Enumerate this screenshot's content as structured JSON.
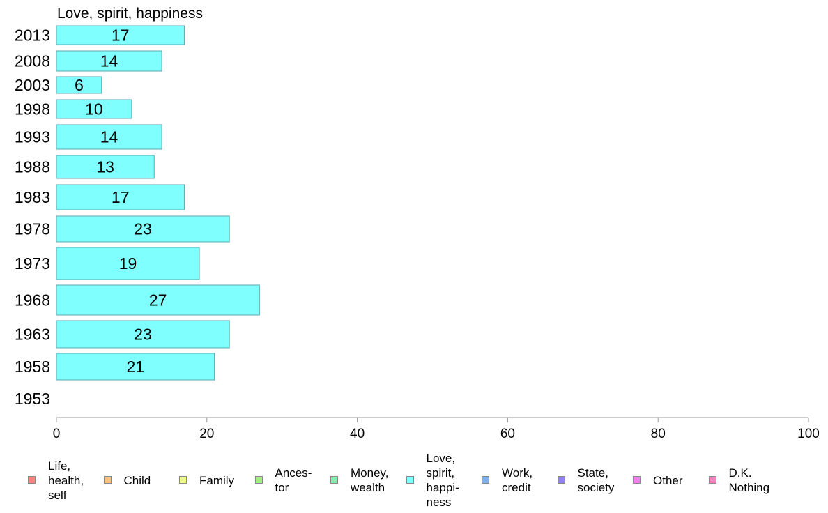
{
  "chart_data": {
    "type": "bar",
    "orientation": "horizontal",
    "title": "Love, spirit, happiness",
    "categories": [
      "2013",
      "2008",
      "2003",
      "1998",
      "1993",
      "1988",
      "1983",
      "1978",
      "1973",
      "1968",
      "1963",
      "1958",
      "1953"
    ],
    "series": [
      {
        "name": "Love, spirit, happiness",
        "color": "#80ffff",
        "values": [
          17,
          14,
          6,
          10,
          14,
          13,
          17,
          23,
          19,
          27,
          23,
          21,
          null
        ]
      }
    ],
    "xlim": [
      0,
      100
    ],
    "xticks": [
      0,
      20,
      40,
      60,
      80,
      100
    ],
    "grid": false,
    "legend_position": "bottom",
    "legend": [
      {
        "label": "Life,\nhealth,\nself",
        "color": "#ff8080"
      },
      {
        "label": "Child",
        "color": "#ffc080"
      },
      {
        "label": "Family",
        "color": "#eeff80"
      },
      {
        "label": "Ances-\ntor",
        "color": "#a0f080"
      },
      {
        "label": "Money,\nwealth",
        "color": "#80f0b0"
      },
      {
        "label": "Love,\nspirit,\nhappi-\nness",
        "color": "#80ffff"
      },
      {
        "label": "Work,\ncredit",
        "color": "#80b0f0"
      },
      {
        "label": "State,\nsociety",
        "color": "#9080f0"
      },
      {
        "label": "Other",
        "color": "#f080f0"
      },
      {
        "label": "D.K.\nNothing",
        "color": "#ff80c0"
      }
    ]
  }
}
